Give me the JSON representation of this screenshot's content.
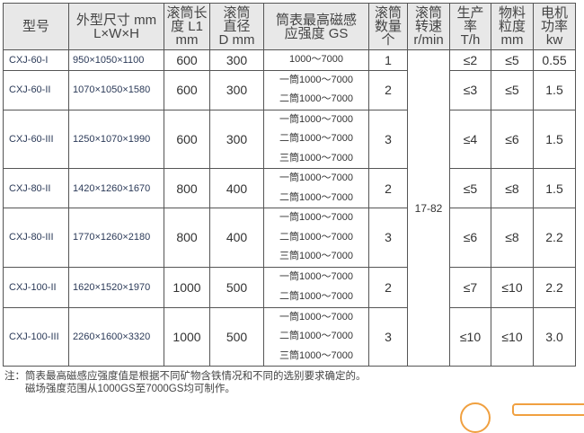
{
  "headers": [
    "型号",
    "外型尺寸 mm\nL×W×H",
    "滚筒长\n度 L1\nmm",
    "滚筒\n直径\nD mm",
    "筒表最高磁感\n应强度 GS",
    "滚筒\n数量\n个",
    "滚筒\n转速\nr/min",
    "生产\n率\nT/h",
    "物料\n粒度\nmm",
    "电机\n功率\nkw"
  ],
  "speed": "17-82",
  "rows": [
    {
      "model": "CXJ-60-I",
      "dims": "950×1050×1100",
      "length": "600",
      "diameter": "300",
      "gs": [
        "1000～7000"
      ],
      "count": "1",
      "rate": "≤2",
      "size": "≤5",
      "power": "0.55"
    },
    {
      "model": "CXJ-60-II",
      "dims": "1070×1050×1580",
      "length": "600",
      "diameter": "300",
      "gs": [
        "一筒1000～7000",
        "二筒1000～7000"
      ],
      "count": "2",
      "rate": "≤3",
      "size": "≤5",
      "power": "1.5"
    },
    {
      "model": "CXJ-60-III",
      "dims": "1250×1070×1990",
      "length": "600",
      "diameter": "300",
      "gs": [
        "一筒1000～7000",
        "二筒1000～7000",
        "三筒1000～7000"
      ],
      "count": "3",
      "rate": "≤4",
      "size": "≤6",
      "power": "1.5"
    },
    {
      "model": "CXJ-80-II",
      "dims": "1420×1260×1670",
      "length": "800",
      "diameter": "400",
      "gs": [
        "一筒1000～7000",
        "二筒1000～7000"
      ],
      "count": "2",
      "rate": "≤5",
      "size": "≤8",
      "power": "1.5"
    },
    {
      "model": "CXJ-80-III",
      "dims": "1770×1260×2180",
      "length": "800",
      "diameter": "400",
      "gs": [
        "一筒1000～7000",
        "二筒1000～7000",
        "三筒1000～7000"
      ],
      "count": "3",
      "rate": "≤6",
      "size": "≤8",
      "power": "2.2"
    },
    {
      "model": "CXJ-100-II",
      "dims": "1620×1520×1970",
      "length": "1000",
      "diameter": "500",
      "gs": [
        "一筒1000～7000",
        "二筒1000～7000"
      ],
      "count": "2",
      "rate": "≤7",
      "size": "≤10",
      "power": "2.2"
    },
    {
      "model": "CXJ-100-III",
      "dims": "2260×1600×3320",
      "length": "1000",
      "diameter": "500",
      "gs": [
        "一筒1000～7000",
        "二筒1000～7000",
        "三筒1000～7000"
      ],
      "count": "3",
      "rate": "≤10",
      "size": "≤10",
      "power": "3.0"
    }
  ],
  "note": [
    "注：筒表最高磁感应强度值是根据不同矿物含铁情况和不同的选别要求确定的。",
    "　　磁场强度范围从1000GS至7000GS均可制作。"
  ]
}
